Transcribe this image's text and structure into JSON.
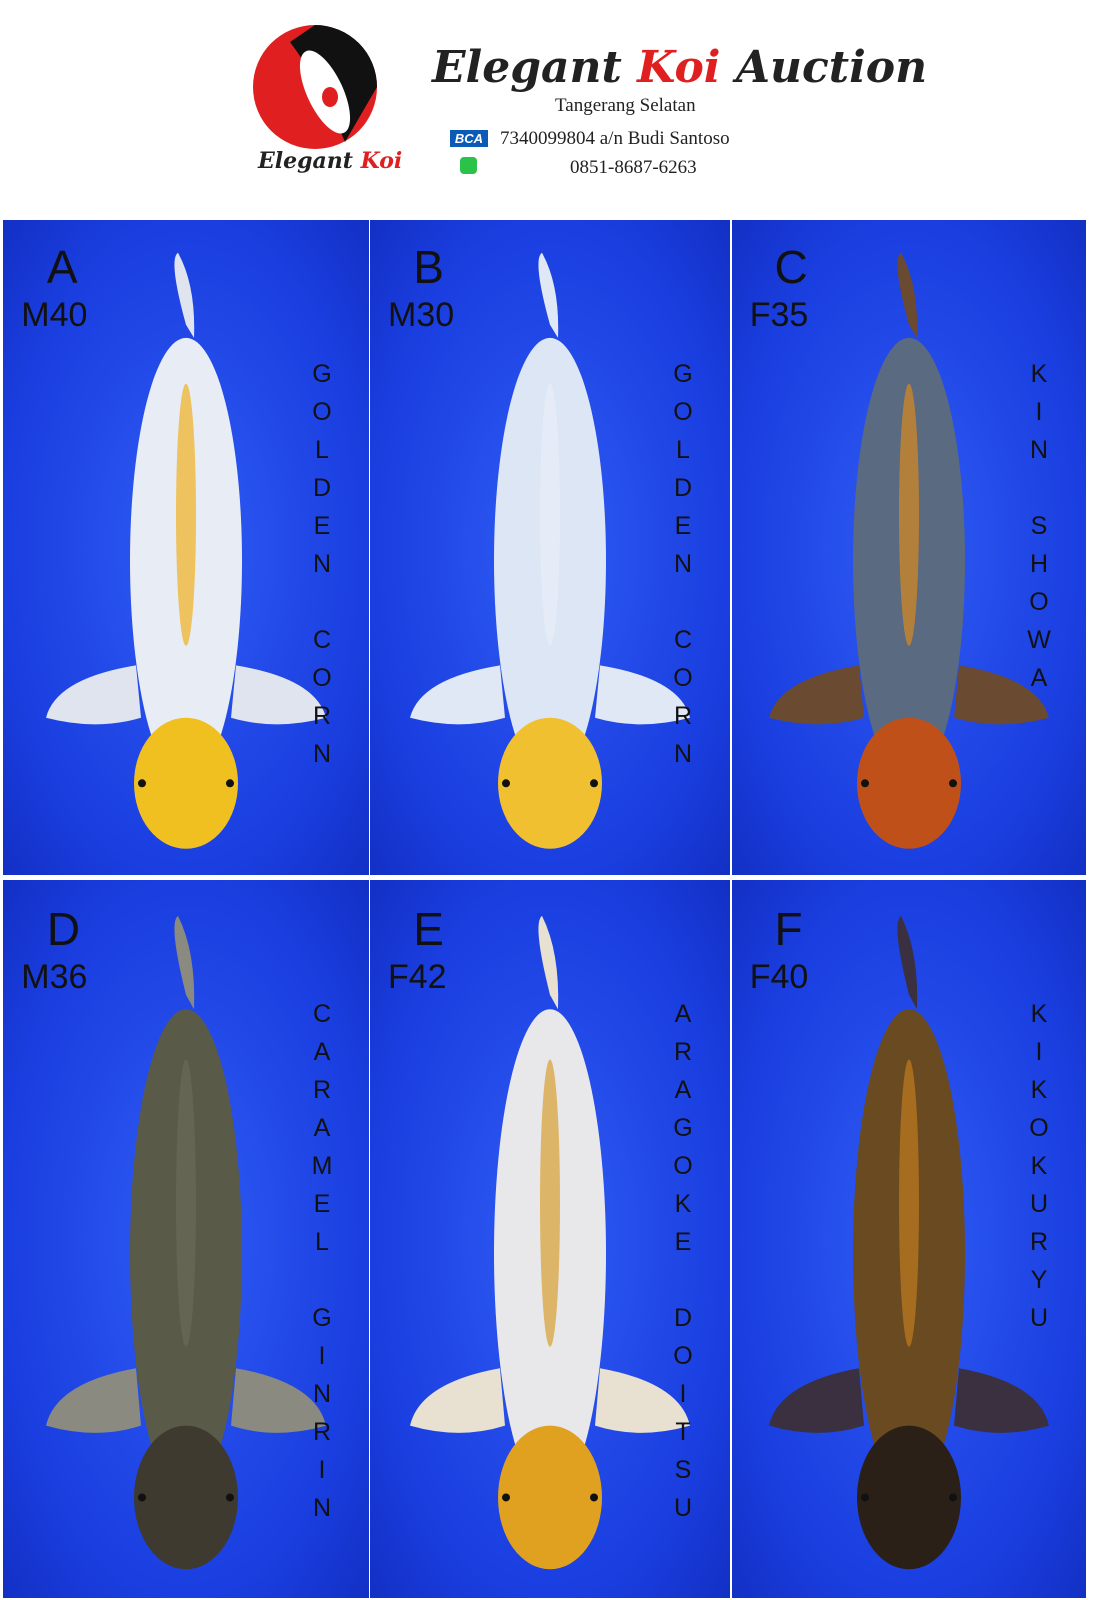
{
  "header": {
    "logo_text": [
      "Elegant",
      "Koi"
    ],
    "title": [
      "Elegant",
      "Koi",
      "Auction"
    ],
    "location": "Tangerang Selatan",
    "bank": "BCA",
    "account": "7340099804 a/n Budi Santoso",
    "phone": "0851-8687-6263"
  },
  "lots": [
    {
      "code": "A",
      "size": "M40",
      "variety": "GOLDEN CORN"
    },
    {
      "code": "B",
      "size": "M30",
      "variety": "GOLDEN CORN"
    },
    {
      "code": "C",
      "size": "F35",
      "variety": "KIN SHOWA"
    },
    {
      "code": "D",
      "size": "M36",
      "variety": "CARAMEL GINRIN"
    },
    {
      "code": "E",
      "size": "F42",
      "variety": "ARAGOKE DOITSU"
    },
    {
      "code": "F",
      "size": "F40",
      "variety": "KIKOKURYU"
    }
  ]
}
